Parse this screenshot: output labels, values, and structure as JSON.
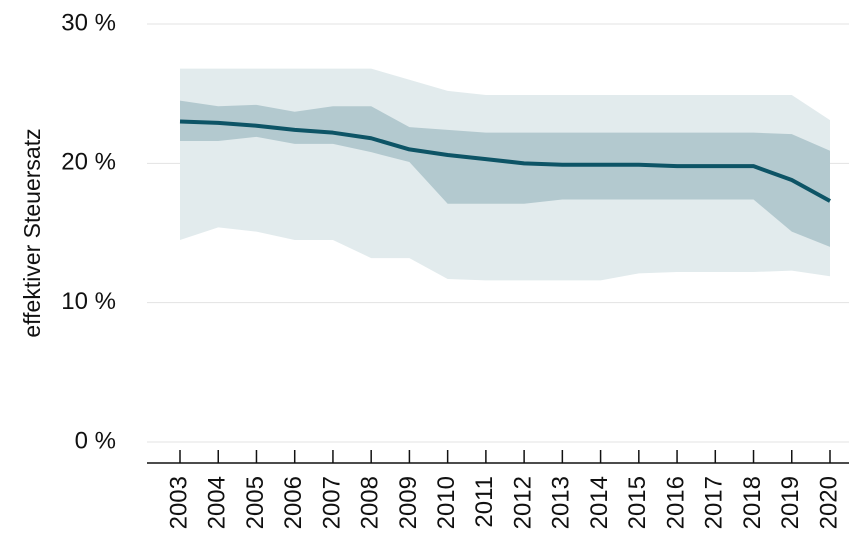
{
  "chart_data": {
    "type": "line",
    "y_label": "effektiver Steuersatz",
    "categories": [
      "2003",
      "2004",
      "2005",
      "2006",
      "2007",
      "2008",
      "2009",
      "2010",
      "2011",
      "2012",
      "2013",
      "2014",
      "2015",
      "2016",
      "2017",
      "2018",
      "2019",
      "2020"
    ],
    "bands": [
      {
        "color": "#e2ebed",
        "upper": [
          26.8,
          26.8,
          26.8,
          26.8,
          26.8,
          26.8,
          26.0,
          25.2,
          24.9,
          24.9,
          24.9,
          24.9,
          24.9,
          24.9,
          24.9,
          24.9,
          24.9,
          23.1
        ],
        "lower": [
          14.5,
          15.4,
          15.1,
          14.5,
          14.5,
          13.2,
          13.2,
          11.7,
          11.6,
          11.6,
          11.6,
          11.6,
          12.1,
          12.2,
          12.2,
          12.2,
          12.3,
          11.9
        ]
      },
      {
        "color": "#b3c9cf",
        "upper": [
          24.5,
          24.1,
          24.2,
          23.7,
          24.1,
          24.1,
          22.6,
          22.4,
          22.2,
          22.2,
          22.2,
          22.2,
          22.2,
          22.2,
          22.2,
          22.2,
          22.1,
          20.9
        ],
        "lower": [
          21.6,
          21.6,
          21.9,
          21.4,
          21.4,
          20.8,
          20.1,
          17.1,
          17.1,
          17.1,
          17.4,
          17.4,
          17.4,
          17.4,
          17.4,
          17.4,
          15.1,
          14.0
        ]
      }
    ],
    "line": {
      "color": "#0d5466",
      "values": [
        23.0,
        22.9,
        22.7,
        22.4,
        22.2,
        21.8,
        21.0,
        20.6,
        20.3,
        20.0,
        19.9,
        19.9,
        19.9,
        19.8,
        19.8,
        19.8,
        18.8,
        17.3
      ]
    },
    "ylim": [
      0,
      30
    ],
    "yticks": [
      {
        "value": 0,
        "label": "0 %"
      },
      {
        "value": 10,
        "label": "10 %"
      },
      {
        "value": 20,
        "label": "20 %"
      },
      {
        "value": 30,
        "label": "30 %"
      }
    ],
    "grid": true
  }
}
